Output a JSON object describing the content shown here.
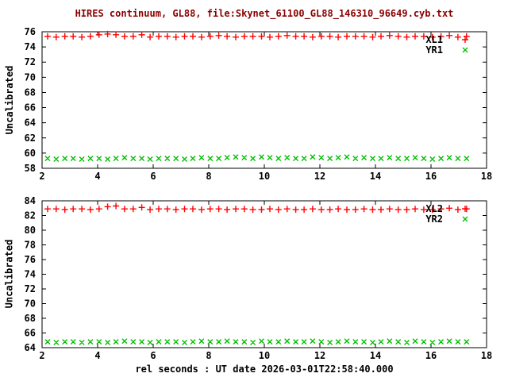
{
  "title": "HIRES continuum, GL88, file:Skynet_61100_GL88_146310_96649.cyb.txt",
  "xlabel": "rel seconds : UT date 2026-03-01T22:58:40.000",
  "colors": {
    "title": "#8b0000",
    "axis": "#000000",
    "background": "#ffffff",
    "xl_series": "#ff0000",
    "yr_series": "#00c000"
  },
  "chart_data": [
    {
      "type": "scatter",
      "panel": "top",
      "ylabel": "Uncalibrated",
      "xlim": [
        2,
        18
      ],
      "ylim": [
        58,
        76
      ],
      "xticks": [
        2,
        4,
        6,
        8,
        10,
        12,
        14,
        16,
        18
      ],
      "yticks": [
        58,
        60,
        62,
        64,
        66,
        68,
        70,
        72,
        74,
        76
      ],
      "grid": false,
      "legend_position": "top-right-inside",
      "series": [
        {
          "name": "XL1",
          "marker": "plus",
          "color": "#ff0000",
          "x": [
            2.2,
            2.51,
            2.82,
            3.12,
            3.43,
            3.74,
            4.05,
            4.36,
            4.66,
            4.97,
            5.28,
            5.59,
            5.89,
            6.2,
            6.51,
            6.82,
            7.13,
            7.43,
            7.74,
            8.05,
            8.36,
            8.66,
            8.97,
            9.28,
            9.59,
            9.9,
            10.2,
            10.51,
            10.82,
            11.13,
            11.43,
            11.74,
            12.05,
            12.36,
            12.66,
            12.97,
            13.28,
            13.59,
            13.9,
            14.2,
            14.51,
            14.82,
            15.13,
            15.43,
            15.74,
            16.05,
            16.36,
            16.66,
            16.97,
            17.28
          ],
          "y": [
            75.4,
            75.3,
            75.4,
            75.4,
            75.3,
            75.4,
            75.6,
            75.7,
            75.6,
            75.4,
            75.4,
            75.6,
            75.3,
            75.4,
            75.4,
            75.3,
            75.4,
            75.4,
            75.3,
            75.4,
            75.5,
            75.4,
            75.3,
            75.4,
            75.4,
            75.4,
            75.3,
            75.4,
            75.5,
            75.4,
            75.4,
            75.3,
            75.4,
            75.4,
            75.3,
            75.4,
            75.4,
            75.4,
            75.3,
            75.4,
            75.5,
            75.4,
            75.3,
            75.4,
            75.4,
            75.3,
            75.4,
            75.5,
            75.3,
            75.4
          ]
        },
        {
          "name": "YR1",
          "marker": "cross",
          "color": "#00c000",
          "x": [
            2.2,
            2.51,
            2.82,
            3.12,
            3.43,
            3.74,
            4.05,
            4.36,
            4.66,
            4.97,
            5.28,
            5.59,
            5.89,
            6.2,
            6.51,
            6.82,
            7.13,
            7.43,
            7.74,
            8.05,
            8.36,
            8.66,
            8.97,
            9.28,
            9.59,
            9.9,
            10.2,
            10.51,
            10.82,
            11.13,
            11.43,
            11.74,
            12.05,
            12.36,
            12.66,
            12.97,
            13.28,
            13.59,
            13.9,
            14.2,
            14.51,
            14.82,
            15.13,
            15.43,
            15.74,
            16.05,
            16.36,
            16.66,
            16.97,
            17.28
          ],
          "y": [
            59.3,
            59.2,
            59.3,
            59.3,
            59.2,
            59.3,
            59.3,
            59.2,
            59.3,
            59.4,
            59.3,
            59.3,
            59.2,
            59.3,
            59.3,
            59.3,
            59.2,
            59.3,
            59.4,
            59.3,
            59.3,
            59.4,
            59.5,
            59.4,
            59.3,
            59.5,
            59.4,
            59.3,
            59.4,
            59.3,
            59.3,
            59.5,
            59.4,
            59.3,
            59.4,
            59.5,
            59.3,
            59.4,
            59.3,
            59.3,
            59.4,
            59.3,
            59.3,
            59.4,
            59.3,
            59.2,
            59.3,
            59.4,
            59.3,
            59.3
          ]
        }
      ]
    },
    {
      "type": "scatter",
      "panel": "bottom",
      "ylabel": "Uncalibrated",
      "xlim": [
        2,
        18
      ],
      "ylim": [
        64,
        84
      ],
      "xticks": [
        2,
        4,
        6,
        8,
        10,
        12,
        14,
        16,
        18
      ],
      "yticks": [
        64,
        66,
        68,
        70,
        72,
        74,
        76,
        78,
        80,
        82,
        84
      ],
      "grid": false,
      "legend_position": "top-right-inside",
      "series": [
        {
          "name": "XL2",
          "marker": "plus",
          "color": "#ff0000",
          "x": [
            2.2,
            2.51,
            2.82,
            3.12,
            3.43,
            3.74,
            4.05,
            4.36,
            4.66,
            4.97,
            5.28,
            5.59,
            5.89,
            6.2,
            6.51,
            6.82,
            7.13,
            7.43,
            7.74,
            8.05,
            8.36,
            8.66,
            8.97,
            9.28,
            9.59,
            9.9,
            10.2,
            10.51,
            10.82,
            11.13,
            11.43,
            11.74,
            12.05,
            12.36,
            12.66,
            12.97,
            13.28,
            13.59,
            13.9,
            14.2,
            14.51,
            14.82,
            15.13,
            15.43,
            15.74,
            16.05,
            16.36,
            16.66,
            16.97,
            17.28
          ],
          "y": [
            82.9,
            82.9,
            82.8,
            82.9,
            82.9,
            82.8,
            82.9,
            83.2,
            83.3,
            82.9,
            82.9,
            83.1,
            82.8,
            82.9,
            82.9,
            82.8,
            82.9,
            82.9,
            82.8,
            82.9,
            82.9,
            82.8,
            82.9,
            82.9,
            82.8,
            82.8,
            82.9,
            82.8,
            82.9,
            82.8,
            82.8,
            82.9,
            82.8,
            82.8,
            82.9,
            82.8,
            82.8,
            82.9,
            82.8,
            82.8,
            82.9,
            82.8,
            82.8,
            82.9,
            82.8,
            82.8,
            82.9,
            83.0,
            82.8,
            82.9
          ]
        },
        {
          "name": "YR2",
          "marker": "cross",
          "color": "#00c000",
          "x": [
            2.2,
            2.51,
            2.82,
            3.12,
            3.43,
            3.74,
            4.05,
            4.36,
            4.66,
            4.97,
            5.28,
            5.59,
            5.89,
            6.2,
            6.51,
            6.82,
            7.13,
            7.43,
            7.74,
            8.05,
            8.36,
            8.66,
            8.97,
            9.28,
            9.59,
            9.9,
            10.2,
            10.51,
            10.82,
            11.13,
            11.43,
            11.74,
            12.05,
            12.36,
            12.66,
            12.97,
            13.28,
            13.59,
            13.9,
            14.2,
            14.51,
            14.82,
            15.13,
            15.43,
            15.74,
            16.05,
            16.36,
            16.66,
            16.97,
            17.28
          ],
          "y": [
            64.8,
            64.7,
            64.8,
            64.8,
            64.7,
            64.8,
            64.8,
            64.7,
            64.8,
            64.9,
            64.8,
            64.8,
            64.7,
            64.8,
            64.8,
            64.8,
            64.7,
            64.8,
            64.9,
            64.8,
            64.8,
            64.9,
            64.8,
            64.8,
            64.7,
            64.9,
            64.8,
            64.8,
            64.9,
            64.8,
            64.8,
            64.9,
            64.8,
            64.7,
            64.8,
            64.9,
            64.8,
            64.8,
            64.7,
            64.8,
            64.9,
            64.8,
            64.7,
            64.9,
            64.8,
            64.7,
            64.8,
            64.9,
            64.8,
            64.8
          ]
        }
      ]
    }
  ]
}
